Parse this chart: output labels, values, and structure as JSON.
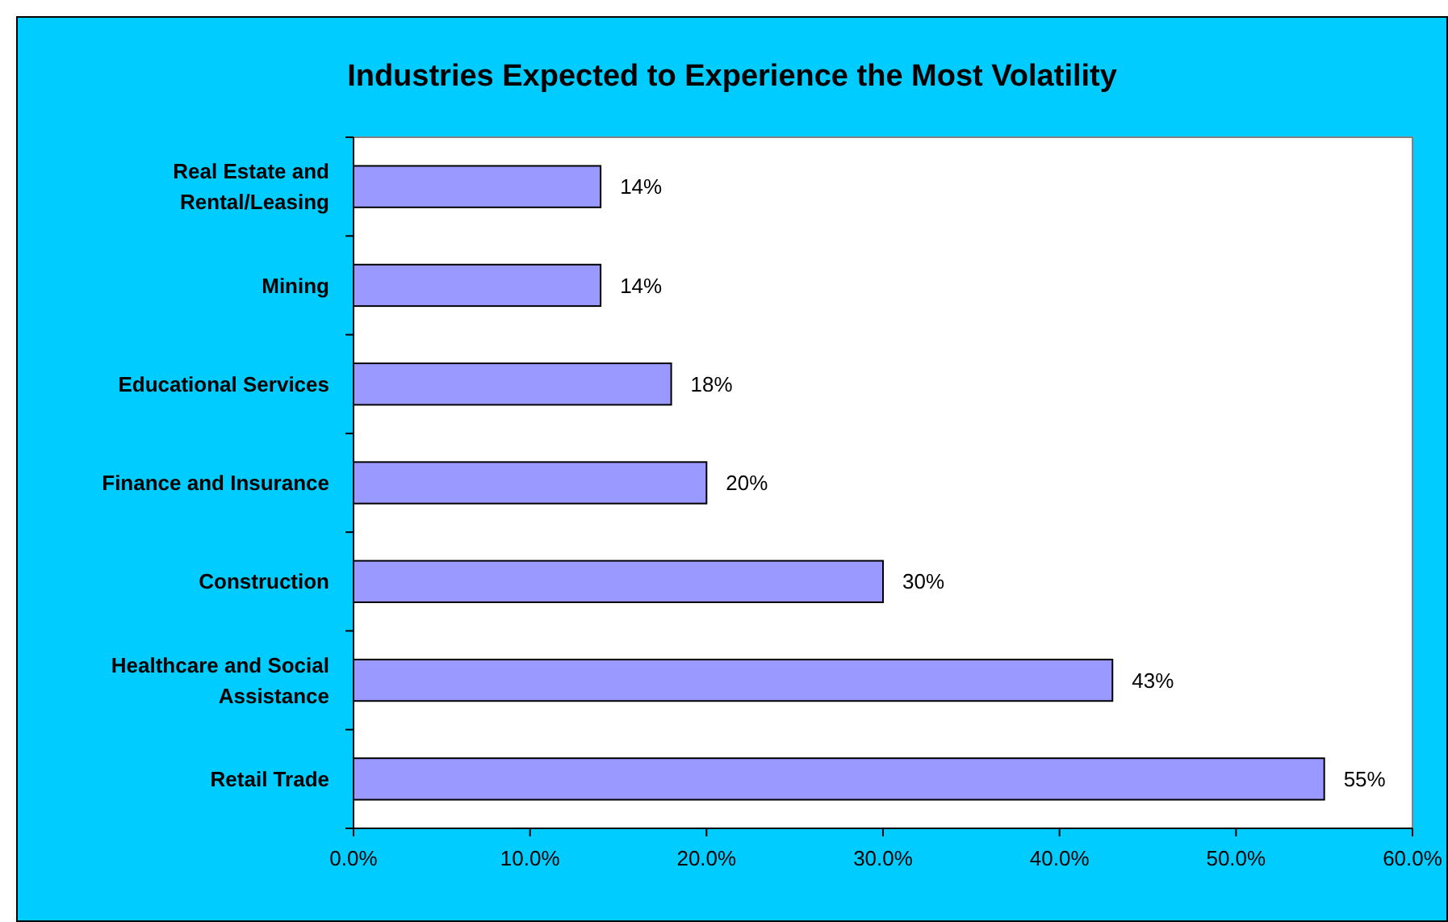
{
  "chart_data": {
    "type": "bar",
    "orientation": "horizontal",
    "title": "Industries Expected to Experience the Most Volatility",
    "categories": [
      "Real Estate and Rental/Leasing",
      "Mining",
      "Educational Services",
      "Finance and Insurance",
      "Construction",
      "Healthcare and Social Assistance",
      "Retail Trade"
    ],
    "values": [
      14,
      14,
      18,
      20,
      30,
      43,
      55
    ],
    "value_labels": [
      "14%",
      "14%",
      "18%",
      "20%",
      "30%",
      "43%",
      "55%"
    ],
    "color": "#9999ff",
    "xlim": [
      0,
      60
    ],
    "xticks": [
      {
        "value": 0,
        "label": "0.0%"
      },
      {
        "value": 10,
        "label": "10.0%"
      },
      {
        "value": 20,
        "label": "20.0%"
      },
      {
        "value": 30,
        "label": "30.0%"
      },
      {
        "value": 40,
        "label": "40.0%"
      },
      {
        "value": 50,
        "label": "50.0%"
      },
      {
        "value": 60,
        "label": "60.0%"
      }
    ],
    "grid": false
  }
}
